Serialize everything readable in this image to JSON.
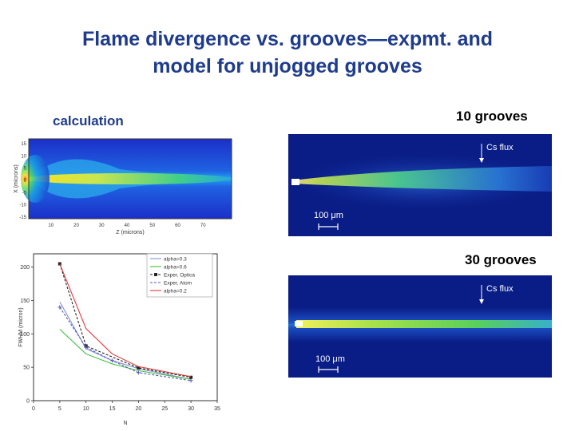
{
  "slide": {
    "title_line1": "Flame divergence vs. grooves—expmt. and",
    "title_line2": "model for unjogged grooves",
    "label_calculation": "calculation",
    "label_10_grooves": "10 grooves",
    "label_30_grooves": "30 grooves"
  },
  "colors": {
    "title": "#1f3c8c",
    "image_background": "#0a1c86",
    "flame_core": "#c8e650"
  },
  "heatmap": {
    "ylabel": "X (microns)",
    "xlabel": "Z (microns)",
    "x_ticks": [
      "10",
      "20",
      "30",
      "40",
      "50",
      "60",
      "70"
    ],
    "y_ticks": [
      "15",
      "10",
      "5",
      "0",
      "-5",
      "-10",
      "-15"
    ]
  },
  "camera_image_10": {
    "annotation": "Cs flux",
    "scale_bar": "100 μm"
  },
  "camera_image_30": {
    "annotation": "Cs flux",
    "scale_bar": "100 μm"
  },
  "chart_data": {
    "type": "line",
    "xlabel": "N",
    "ylabel": "FWHM (micron)",
    "xlim": [
      0,
      35
    ],
    "ylim": [
      0,
      220
    ],
    "x_ticks": [
      0,
      5,
      10,
      15,
      20,
      25,
      30,
      35
    ],
    "y_ticks": [
      0,
      50,
      100,
      150,
      200
    ],
    "grid": false,
    "legend_position": "top-right",
    "series": [
      {
        "name": "alpha=0.3",
        "color": "#7f8fd8",
        "marker": "none",
        "x": [
          5,
          10,
          15,
          20,
          30
        ],
        "y": [
          148,
          78,
          60,
          48,
          32
        ]
      },
      {
        "name": "alpha=0.6",
        "color": "#3bbf3b",
        "marker": "none",
        "x": [
          5,
          10,
          15,
          20,
          30
        ],
        "y": [
          107,
          70,
          55,
          45,
          32
        ]
      },
      {
        "name": "Exper, Optica",
        "color": "#222222",
        "marker": "square",
        "x": [
          5,
          10,
          20,
          30
        ],
        "y": [
          205,
          82,
          49,
          35
        ]
      },
      {
        "name": "Exper, Atom",
        "color": "#5a5ab0",
        "marker": "plus",
        "x": [
          5,
          10,
          15,
          20,
          30
        ],
        "y": [
          140,
          80,
          60,
          42,
          30
        ]
      },
      {
        "name": "alpha=0.2",
        "color": "#e03a3a",
        "marker": "none",
        "x": [
          5,
          10,
          15,
          20,
          30
        ],
        "y": [
          205,
          108,
          70,
          51,
          36
        ]
      }
    ]
  }
}
